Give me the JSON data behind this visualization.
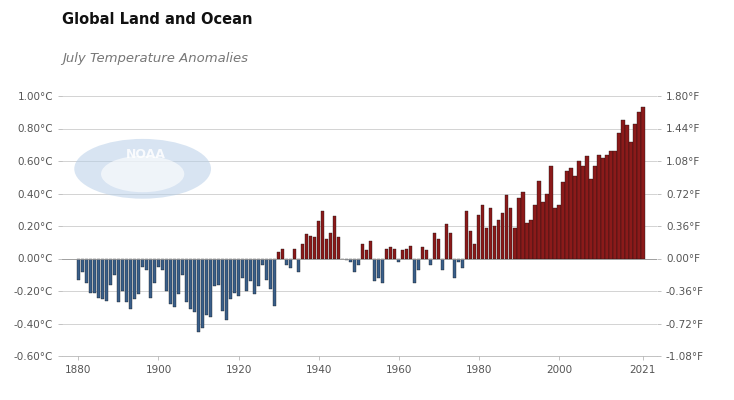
{
  "title1": "Global Land and Ocean",
  "title2": "July Temperature Anomalies",
  "years": [
    1880,
    1881,
    1882,
    1883,
    1884,
    1885,
    1886,
    1887,
    1888,
    1889,
    1890,
    1891,
    1892,
    1893,
    1894,
    1895,
    1896,
    1897,
    1898,
    1899,
    1900,
    1901,
    1902,
    1903,
    1904,
    1905,
    1906,
    1907,
    1908,
    1909,
    1910,
    1911,
    1912,
    1913,
    1914,
    1915,
    1916,
    1917,
    1918,
    1919,
    1920,
    1921,
    1922,
    1923,
    1924,
    1925,
    1926,
    1927,
    1928,
    1929,
    1930,
    1931,
    1932,
    1933,
    1934,
    1935,
    1936,
    1937,
    1938,
    1939,
    1940,
    1941,
    1942,
    1943,
    1944,
    1945,
    1946,
    1947,
    1948,
    1949,
    1950,
    1951,
    1952,
    1953,
    1954,
    1955,
    1956,
    1957,
    1958,
    1959,
    1960,
    1961,
    1962,
    1963,
    1964,
    1965,
    1966,
    1967,
    1968,
    1969,
    1970,
    1971,
    1972,
    1973,
    1974,
    1975,
    1976,
    1977,
    1978,
    1979,
    1980,
    1981,
    1982,
    1983,
    1984,
    1985,
    1986,
    1987,
    1988,
    1989,
    1990,
    1991,
    1992,
    1993,
    1994,
    1995,
    1996,
    1997,
    1998,
    1999,
    2000,
    2001,
    2002,
    2003,
    2004,
    2005,
    2006,
    2007,
    2008,
    2009,
    2010,
    2011,
    2012,
    2013,
    2014,
    2015,
    2016,
    2017,
    2018,
    2019,
    2020,
    2021
  ],
  "anomalies": [
    -0.13,
    -0.08,
    -0.15,
    -0.21,
    -0.21,
    -0.24,
    -0.25,
    -0.26,
    -0.16,
    -0.1,
    -0.27,
    -0.2,
    -0.27,
    -0.31,
    -0.25,
    -0.22,
    -0.05,
    -0.07,
    -0.24,
    -0.15,
    -0.05,
    -0.07,
    -0.2,
    -0.28,
    -0.3,
    -0.22,
    -0.1,
    -0.27,
    -0.31,
    -0.33,
    -0.45,
    -0.43,
    -0.35,
    -0.36,
    -0.17,
    -0.16,
    -0.32,
    -0.38,
    -0.25,
    -0.21,
    -0.23,
    -0.12,
    -0.2,
    -0.14,
    -0.22,
    -0.17,
    -0.04,
    -0.13,
    -0.19,
    -0.29,
    0.04,
    0.06,
    -0.04,
    -0.06,
    0.06,
    -0.08,
    0.09,
    0.15,
    0.14,
    0.13,
    0.23,
    0.29,
    0.12,
    0.16,
    0.26,
    0.13,
    0.0,
    -0.01,
    -0.02,
    -0.08,
    -0.04,
    0.09,
    0.05,
    0.11,
    -0.14,
    -0.12,
    -0.15,
    0.06,
    0.07,
    0.06,
    -0.02,
    0.05,
    0.06,
    0.08,
    -0.15,
    -0.07,
    0.07,
    0.05,
    -0.04,
    0.16,
    0.12,
    -0.07,
    0.21,
    0.16,
    -0.12,
    -0.02,
    -0.06,
    0.29,
    0.17,
    0.09,
    0.27,
    0.33,
    0.19,
    0.31,
    0.2,
    0.24,
    0.28,
    0.39,
    0.31,
    0.19,
    0.37,
    0.41,
    0.22,
    0.24,
    0.33,
    0.48,
    0.35,
    0.4,
    0.57,
    0.31,
    0.33,
    0.47,
    0.54,
    0.56,
    0.51,
    0.6,
    0.57,
    0.63,
    0.49,
    0.57,
    0.64,
    0.62,
    0.64,
    0.66,
    0.66,
    0.77,
    0.85,
    0.82,
    0.72,
    0.83,
    0.9,
    0.93
  ],
  "ylim_celsius": [
    -0.6,
    1.0
  ],
  "yticks_celsius": [
    -0.6,
    -0.4,
    -0.2,
    0.0,
    0.2,
    0.4,
    0.6,
    0.8,
    1.0
  ],
  "yticks_fahrenheit": [
    -1.08,
    -0.72,
    -0.36,
    0.0,
    0.36,
    0.72,
    1.08,
    1.44,
    1.8
  ],
  "color_positive": "#8B1A1A",
  "color_negative": "#3a5f8a",
  "background_color": "#ffffff",
  "grid_color": "#cccccc",
  "axis_label_color": "#555555",
  "title1_color": "#111111",
  "title2_color": "#777777",
  "noaa_color": "#b8cfe8",
  "xticks": [
    1880,
    1900,
    1920,
    1940,
    1960,
    1980,
    2000,
    2021
  ]
}
